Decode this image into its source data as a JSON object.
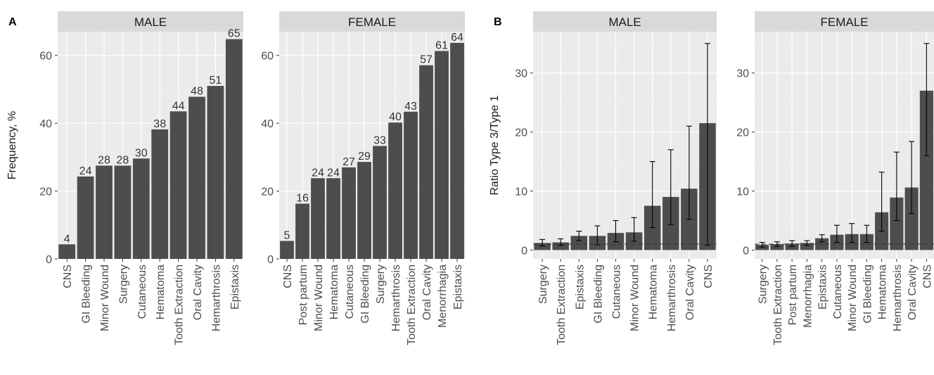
{
  "chart_data": [
    {
      "type": "bar",
      "panel": "A",
      "facet": "MALE",
      "ylabel": "Frequency, %",
      "ylim": [
        0,
        67
      ],
      "yticks": [
        0,
        20,
        40,
        60
      ],
      "grid": true,
      "categories": [
        "CNS",
        "GI Bleeding",
        "Minor Wound",
        "Surgery",
        "Cutaneous",
        "Hematoma",
        "Tooth Extraction",
        "Oral Cavity",
        "Hemarthrosis",
        "Epistaxis"
      ],
      "values": [
        4.3,
        24.3,
        27.5,
        27.5,
        29.6,
        38.2,
        43.5,
        47.8,
        51.0,
        64.8
      ],
      "labels": [
        "4",
        "24",
        "28",
        "28",
        "30",
        "38",
        "44",
        "48",
        "51",
        "65"
      ]
    },
    {
      "type": "bar",
      "panel": "",
      "facet": "FEMALE",
      "ylabel": "",
      "ylim": [
        0,
        67
      ],
      "yticks": [
        0,
        20,
        40,
        60
      ],
      "grid": true,
      "categories": [
        "CNS",
        "Post partum",
        "Minor Wound",
        "Hematoma",
        "Cutaneous",
        "GI Bleeding",
        "Surgery",
        "Hemarthrosis",
        "Tooth Extraction",
        "Oral Cavity",
        "Menorrhagia",
        "Epistaxis"
      ],
      "values": [
        5.3,
        16.3,
        23.8,
        23.8,
        27.0,
        28.6,
        33.3,
        40.2,
        43.4,
        57.1,
        61.3,
        63.7
      ],
      "labels": [
        "5",
        "16",
        "24",
        "24",
        "27",
        "29",
        "33",
        "40",
        "43",
        "57",
        "61",
        "64"
      ]
    },
    {
      "type": "bar",
      "panel": "B",
      "facet": "MALE",
      "ylabel": "Ratio Type 3/Type 1",
      "ylim": [
        -1.5,
        37
      ],
      "yticks": [
        0,
        10,
        20,
        30
      ],
      "grid": true,
      "reference_line": 1,
      "categories": [
        "Surgery",
        "Tooth Extraction",
        "Epistaxis",
        "GI Bleeding",
        "Cutaneous",
        "Minor Wound",
        "Hematoma",
        "Hemarthrosis",
        "Oral Cavity",
        "CNS"
      ],
      "values": [
        1.2,
        1.3,
        2.4,
        2.4,
        2.9,
        3.0,
        7.5,
        9.0,
        10.4,
        21.5
      ],
      "error_low": [
        0.7,
        0.8,
        1.6,
        0.9,
        1.4,
        1.5,
        3.8,
        4.3,
        5.2,
        0.8
      ],
      "error_high": [
        1.8,
        1.9,
        3.2,
        4.1,
        5.0,
        5.5,
        15.0,
        17.0,
        21.0,
        35.0
      ]
    },
    {
      "type": "bar",
      "panel": "",
      "facet": "FEMALE",
      "ylabel": "",
      "ylim": [
        -1.5,
        37
      ],
      "yticks": [
        0,
        10,
        20,
        30
      ],
      "grid": true,
      "reference_line": 1,
      "categories": [
        "Surgery",
        "Tooth Extraction",
        "Post partum",
        "Menorrhagia",
        "Epistaxis",
        "Cutaneous",
        "Minor Wound",
        "GI Bleeding",
        "Hematoma",
        "Hemarthrosis",
        "Oral Cavity",
        "CNS"
      ],
      "values": [
        0.9,
        1.0,
        1.1,
        1.2,
        2.0,
        2.6,
        2.7,
        2.7,
        6.4,
        8.9,
        10.6,
        27.0
      ],
      "error_low": [
        0.5,
        0.6,
        0.6,
        0.8,
        1.4,
        1.3,
        1.3,
        1.3,
        3.2,
        5.0,
        6.2,
        16.0
      ],
      "error_high": [
        1.3,
        1.4,
        1.6,
        1.6,
        2.6,
        4.2,
        4.5,
        4.2,
        13.2,
        16.6,
        18.4,
        35.0
      ]
    }
  ]
}
